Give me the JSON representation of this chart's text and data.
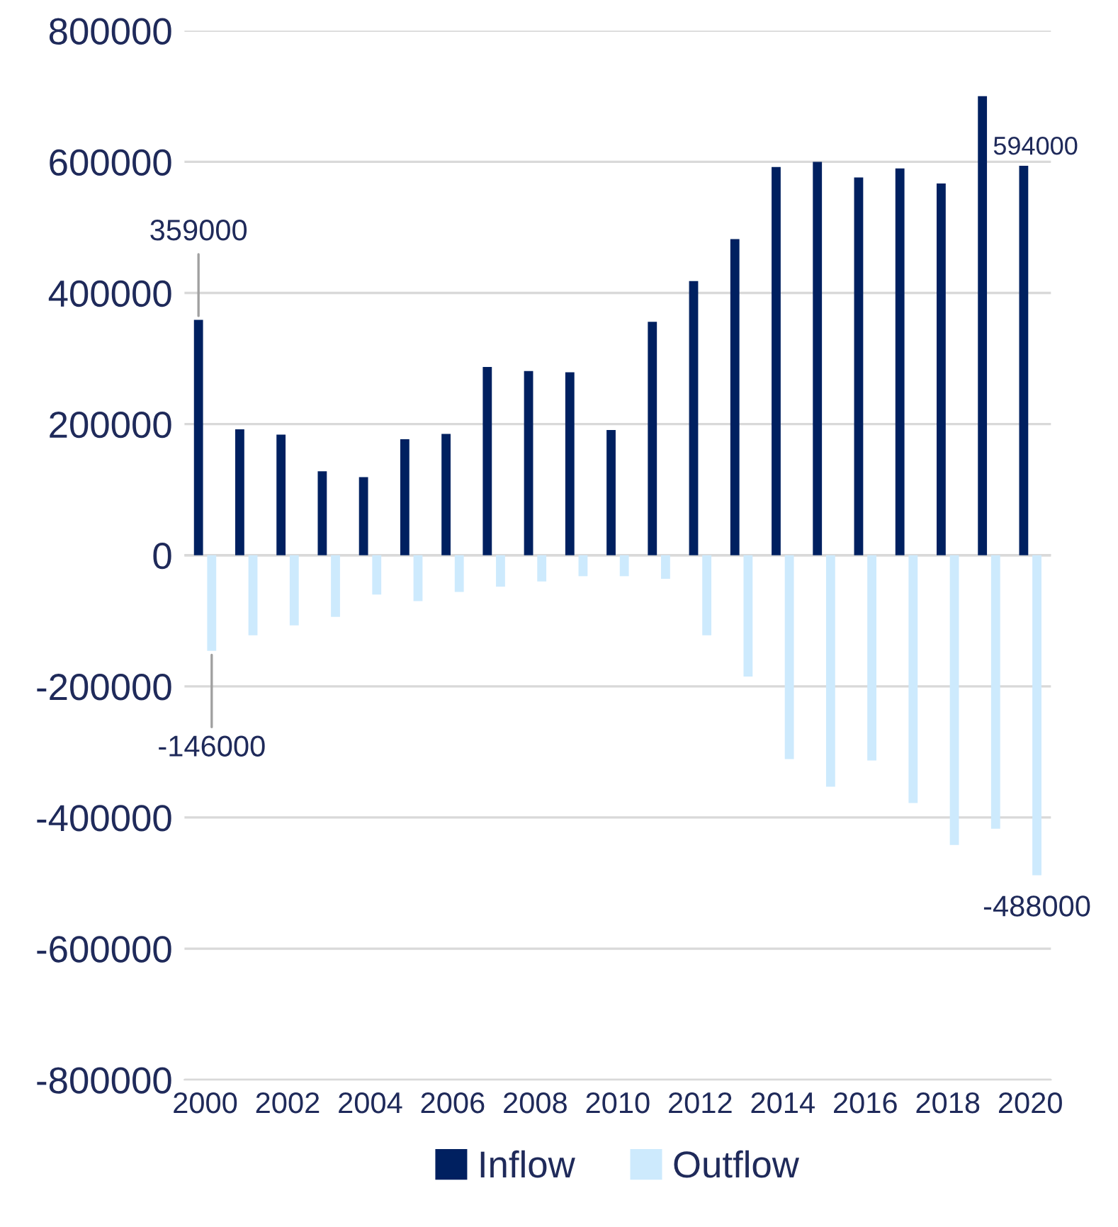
{
  "chart_data": {
    "type": "bar",
    "categories": [
      "2000",
      null,
      "2002",
      null,
      "2004",
      null,
      "2006",
      null,
      "2008",
      null,
      "2010",
      null,
      "2012",
      null,
      "2014",
      null,
      "2016",
      null,
      "2018",
      null,
      "2020"
    ],
    "series": [
      {
        "name": "Inflow",
        "color": "#002060",
        "values": [
          359000,
          192000,
          184000,
          128000,
          119000,
          177000,
          185000,
          287000,
          281000,
          279000,
          191000,
          356000,
          418000,
          482000,
          592000,
          600000,
          576000,
          590000,
          567000,
          700000,
          594000
        ],
        "value_labels": [
          "359000",
          null,
          null,
          null,
          null,
          null,
          null,
          null,
          null,
          null,
          null,
          null,
          null,
          null,
          null,
          null,
          null,
          null,
          null,
          null,
          "594000"
        ]
      },
      {
        "name": "Outflow",
        "color": "#cdeafd",
        "values": [
          -146000,
          -122000,
          -107000,
          -94000,
          -60000,
          -70000,
          -56000,
          -48000,
          -40000,
          -32000,
          -32000,
          -36000,
          -122000,
          -185000,
          -311000,
          -353000,
          -313000,
          -378000,
          -442000,
          -417000,
          -488000
        ],
        "value_labels": [
          "-146000",
          null,
          null,
          null,
          null,
          null,
          null,
          null,
          null,
          null,
          null,
          null,
          null,
          null,
          null,
          null,
          null,
          null,
          null,
          null,
          "-488000"
        ]
      }
    ],
    "ylim": [
      -800000,
      800000
    ],
    "yticks": [
      -800000,
      -600000,
      -400000,
      -200000,
      0,
      200000,
      400000,
      600000,
      800000
    ],
    "grid": "y",
    "legend": "bottom"
  }
}
